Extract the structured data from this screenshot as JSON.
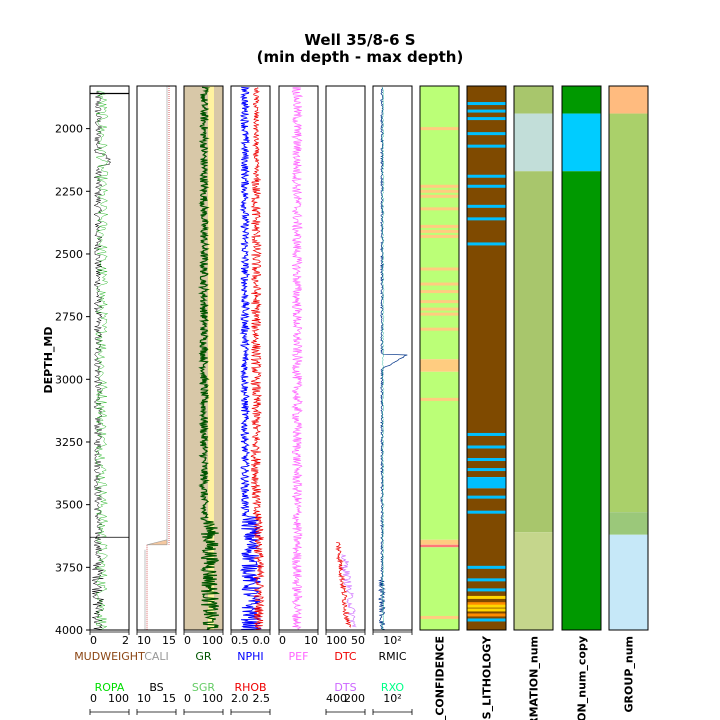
{
  "chart_data": {
    "type": "well_log",
    "title": "Well 35/8-6 S",
    "subtitle": "(min depth - max depth)",
    "ylabel": "DEPTH_MD",
    "ylim": [
      4000,
      1830
    ],
    "y_ticks": [
      2000,
      2250,
      2500,
      2750,
      3000,
      3250,
      3500,
      3750,
      4000
    ],
    "tracks": [
      {
        "curves": [
          {
            "name": "MUDWEIGHT",
            "color": "#8B4513",
            "range": [
              0,
              2
            ],
            "ticks": [
              "0",
              "2"
            ],
            "line": "#000000"
          },
          {
            "name": "ROPA",
            "color": "#00dd00",
            "range": [
              0,
              100
            ],
            "ticks": [
              "0",
              "100"
            ]
          }
        ]
      },
      {
        "curves": [
          {
            "name": "CALI",
            "color": "#999999",
            "range": [
              6,
              16
            ],
            "ticks": [
              "10",
              "15"
            ]
          },
          {
            "name": "BS",
            "color": "#000000",
            "range": [
              6,
              16
            ],
            "ticks": [
              "10",
              "15"
            ]
          }
        ]
      },
      {
        "curves": [
          {
            "name": "GR",
            "color": "#005500",
            "range": [
              0,
              150
            ],
            "ticks": [
              "0",
              "100"
            ]
          },
          {
            "name": "SGR",
            "color": "#66cc66",
            "range": [
              0,
              150
            ],
            "ticks": [
              "0",
              "100"
            ]
          }
        ]
      },
      {
        "curves": [
          {
            "name": "NPHI",
            "color": "#0000ff",
            "range": [
              0.6,
              0.0
            ],
            "ticks": [
              "0.5",
              "0.0"
            ]
          },
          {
            "name": "RHOB",
            "color": "#ee0000",
            "range": [
              1.95,
              2.95
            ],
            "ticks": [
              "2.0",
              "2.5"
            ]
          }
        ]
      },
      {
        "curves": [
          {
            "name": "PEF",
            "color": "#ff66ff",
            "range": [
              0,
              10
            ],
            "ticks": [
              "0",
              "10"
            ]
          }
        ]
      },
      {
        "curves": [
          {
            "name": "DTC",
            "color": "#ee0000",
            "range": [
              140,
              40
            ],
            "ticks": [
              "100",
              "50"
            ]
          },
          {
            "name": "DTS",
            "color": "#cc66ff",
            "range": [
              400,
              0
            ],
            "ticks": [
              "400",
              "200"
            ]
          }
        ]
      },
      {
        "curves": [
          {
            "name": "RMIC",
            "color": "#000000",
            "range": [
              0.1,
              1000
            ],
            "ticks": [
              "10²"
            ]
          },
          {
            "name": "RXO",
            "color": "#00ff88",
            "range": [
              0.1,
              1000
            ],
            "ticks": [
              "10²"
            ]
          }
        ]
      }
    ],
    "categorical_tracks": [
      {
        "name": "S_CONFIDENCE",
        "segments": [
          {
            "from": 1830,
            "to": 2920,
            "color": "#bbff77"
          },
          {
            "from": 2920,
            "to": 2970,
            "color": "#ffcc80"
          },
          {
            "from": 2970,
            "to": 3640,
            "color": "#bbff77"
          },
          {
            "from": 3640,
            "to": 3660,
            "color": "#ffcc80"
          },
          {
            "from": 3660,
            "to": 3670,
            "color": "#ff7777"
          },
          {
            "from": 3670,
            "to": 4000,
            "color": "#bbff77"
          }
        ],
        "stripes": [
          {
            "at": 2000,
            "color": "#ffcc80"
          },
          {
            "at": 2230,
            "color": "#ffcc80"
          },
          {
            "at": 2250,
            "color": "#ffcc80"
          },
          {
            "at": 2270,
            "color": "#ffcc80"
          },
          {
            "at": 2320,
            "color": "#ffcc80"
          },
          {
            "at": 2390,
            "color": "#ffcc80"
          },
          {
            "at": 2410,
            "color": "#ffcc80"
          },
          {
            "at": 2430,
            "color": "#ffcc80"
          },
          {
            "at": 2560,
            "color": "#ffcc80"
          },
          {
            "at": 2620,
            "color": "#ffcc80"
          },
          {
            "at": 2650,
            "color": "#ffcc80"
          },
          {
            "at": 2690,
            "color": "#ffcc80"
          },
          {
            "at": 2720,
            "color": "#ffcc80"
          },
          {
            "at": 2740,
            "color": "#ffcc80"
          },
          {
            "at": 2800,
            "color": "#ffcc80"
          },
          {
            "at": 3080,
            "color": "#ffcc80"
          },
          {
            "at": 3950,
            "color": "#ffcc80"
          }
        ]
      },
      {
        "name": "ES_LITHOLOGY",
        "segments": [
          {
            "from": 1830,
            "to": 3390,
            "color": "#7f4a00"
          },
          {
            "from": 3390,
            "to": 3435,
            "color": "#00bfff"
          },
          {
            "from": 3435,
            "to": 4000,
            "color": "#7f4a00"
          }
        ],
        "stripes": [
          {
            "at": 1900,
            "color": "#00bfff"
          },
          {
            "at": 1930,
            "color": "#00bfff"
          },
          {
            "at": 1960,
            "color": "#00bfff"
          },
          {
            "at": 2020,
            "color": "#00bfff"
          },
          {
            "at": 2070,
            "color": "#00bfff"
          },
          {
            "at": 2190,
            "color": "#00bfff"
          },
          {
            "at": 2230,
            "color": "#00bfff"
          },
          {
            "at": 2310,
            "color": "#00bfff"
          },
          {
            "at": 2360,
            "color": "#00bfff"
          },
          {
            "at": 2460,
            "color": "#00bfff"
          },
          {
            "at": 3220,
            "color": "#00bfff"
          },
          {
            "at": 3270,
            "color": "#00bfff"
          },
          {
            "at": 3320,
            "color": "#00bfff"
          },
          {
            "at": 3360,
            "color": "#00bfff"
          },
          {
            "at": 3470,
            "color": "#00bfff"
          },
          {
            "at": 3530,
            "color": "#00bfff"
          },
          {
            "at": 3750,
            "color": "#00bfff"
          },
          {
            "at": 3800,
            "color": "#00bfff"
          },
          {
            "at": 3840,
            "color": "#00bfff"
          },
          {
            "at": 3870,
            "color": "#ffd700"
          },
          {
            "at": 3895,
            "color": "#ff8c00"
          },
          {
            "at": 3905,
            "color": "#ffd700"
          },
          {
            "at": 3920,
            "color": "#ffd700"
          },
          {
            "at": 3940,
            "color": "#ff8c00"
          },
          {
            "at": 3960,
            "color": "#00bfff"
          }
        ]
      },
      {
        "name": "RMATION_num",
        "segments": [
          {
            "from": 1830,
            "to": 1940,
            "color": "#a8c66c"
          },
          {
            "from": 1940,
            "to": 2170,
            "color": "#c2ded9"
          },
          {
            "from": 2170,
            "to": 3610,
            "color": "#a8c66c"
          },
          {
            "from": 3610,
            "to": 4000,
            "color": "#c5d68c"
          }
        ]
      },
      {
        "name": "TION_num_copy",
        "segments": [
          {
            "from": 1830,
            "to": 1940,
            "color": "#009900"
          },
          {
            "from": 1940,
            "to": 2170,
            "color": "#00ccff"
          },
          {
            "from": 2170,
            "to": 4000,
            "color": "#009900"
          }
        ]
      },
      {
        "name": "GROUP_num",
        "segments": [
          {
            "from": 1830,
            "to": 1940,
            "color": "#ffbb7f"
          },
          {
            "from": 1940,
            "to": 3530,
            "color": "#aad06a"
          },
          {
            "from": 3530,
            "to": 3620,
            "color": "#9bc87a"
          },
          {
            "from": 3620,
            "to": 4000,
            "color": "#c6e8f8"
          }
        ]
      }
    ]
  }
}
